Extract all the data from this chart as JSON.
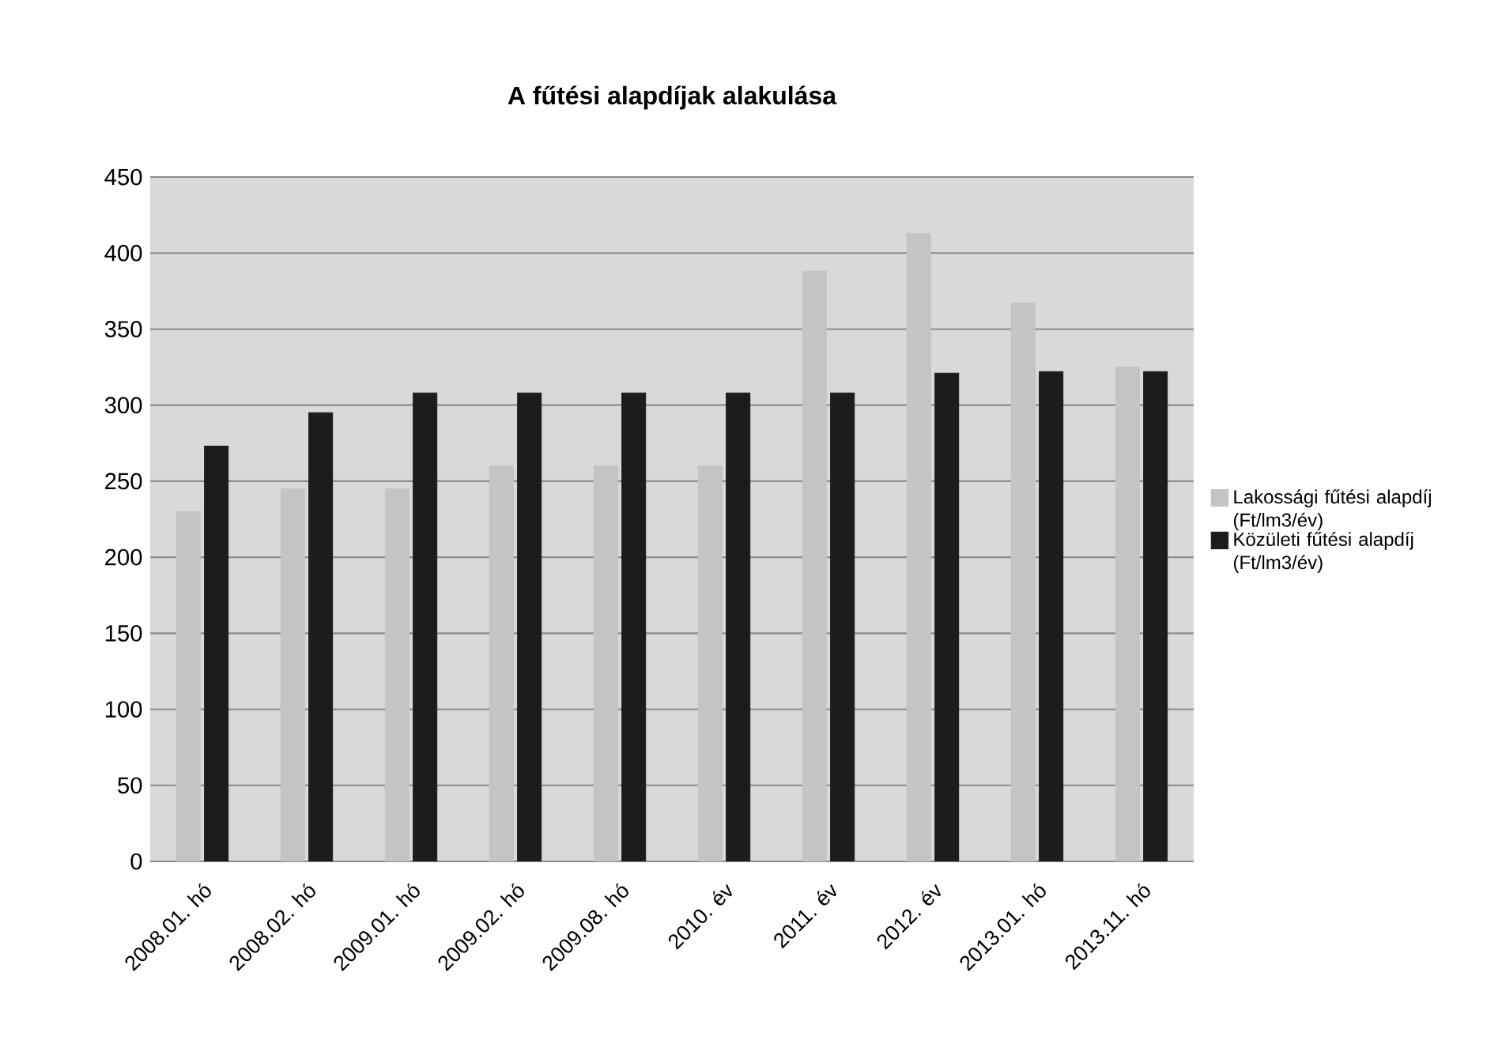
{
  "chart_data": {
    "type": "bar",
    "title": "A fűtési alapdíjak alakulása",
    "categories": [
      "2008.01. hó",
      "2008.02. hó",
      "2009.01. hó",
      "2009.02. hó",
      "2009.08. hó",
      "2010. év",
      "2011. év",
      "2012. év",
      "2013.01. hó",
      "2013.11. hó"
    ],
    "series": [
      {
        "name": "Lakossági fűtési alapdíj (Ft/lm3/év)",
        "color": "#c4c4c4",
        "values": [
          230,
          245,
          245,
          260,
          260,
          260,
          388,
          413,
          367,
          325
        ]
      },
      {
        "name": "Közületi fűtési alapdíj (Ft/lm3/év)",
        "color": "#1c1c1c",
        "values": [
          273,
          295,
          308,
          308,
          308,
          308,
          308,
          321,
          322,
          322
        ]
      }
    ],
    "ylim": [
      0,
      450
    ],
    "yticks": [
      0,
      50,
      100,
      150,
      200,
      250,
      300,
      350,
      400,
      450
    ],
    "grid": "y",
    "legend": "right"
  }
}
